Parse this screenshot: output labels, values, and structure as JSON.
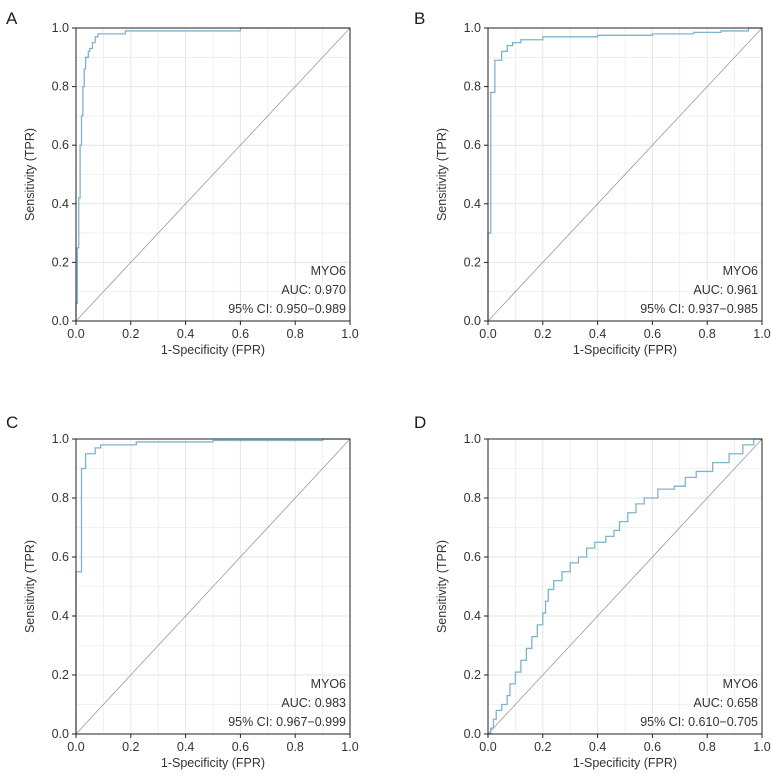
{
  "colors": {
    "roc": "#7fb4cc",
    "diagonal": "#9a9a9a",
    "grid": "#e6e6e6",
    "frame": "#222222",
    "text": "#333333"
  },
  "chart_data": [
    {
      "panel": "A",
      "type": "line",
      "xlabel": "1-Specificity (FPR)",
      "ylabel": "Sensitivity (TPR)",
      "xlim": [
        0,
        1
      ],
      "ylim": [
        0,
        1
      ],
      "grid": true,
      "xticks": [
        "0.0",
        "0.2",
        "0.4",
        "0.6",
        "0.8",
        "1.0"
      ],
      "yticks": [
        "0.0",
        "0.2",
        "0.4",
        "0.6",
        "0.8",
        "1.0"
      ],
      "annotation": {
        "name": "MYO6",
        "auc": "AUC: 0.970",
        "ci": "95% CI: 0.950−0.989"
      },
      "series": [
        {
          "name": "ROC",
          "points": [
            [
              0,
              0
            ],
            [
              0,
              0.06
            ],
            [
              0.005,
              0.06
            ],
            [
              0.005,
              0.25
            ],
            [
              0.01,
              0.25
            ],
            [
              0.01,
              0.42
            ],
            [
              0.015,
              0.42
            ],
            [
              0.015,
              0.6
            ],
            [
              0.02,
              0.6
            ],
            [
              0.02,
              0.7
            ],
            [
              0.025,
              0.7
            ],
            [
              0.025,
              0.8
            ],
            [
              0.03,
              0.8
            ],
            [
              0.03,
              0.86
            ],
            [
              0.035,
              0.86
            ],
            [
              0.035,
              0.9
            ],
            [
              0.045,
              0.9
            ],
            [
              0.045,
              0.92
            ],
            [
              0.05,
              0.92
            ],
            [
              0.05,
              0.93
            ],
            [
              0.06,
              0.93
            ],
            [
              0.06,
              0.95
            ],
            [
              0.07,
              0.95
            ],
            [
              0.07,
              0.97
            ],
            [
              0.08,
              0.97
            ],
            [
              0.08,
              0.98
            ],
            [
              0.18,
              0.98
            ],
            [
              0.18,
              0.99
            ],
            [
              0.6,
              0.99
            ],
            [
              0.6,
              1.0
            ],
            [
              1.0,
              1.0
            ]
          ]
        },
        {
          "name": "Reference",
          "points": [
            [
              0,
              0
            ],
            [
              1,
              1
            ]
          ]
        }
      ]
    },
    {
      "panel": "B",
      "type": "line",
      "xlabel": "1-Specificity (FPR)",
      "ylabel": "Sensitivity (TPR)",
      "xlim": [
        0,
        1
      ],
      "ylim": [
        0,
        1
      ],
      "grid": true,
      "xticks": [
        "0.0",
        "0.2",
        "0.4",
        "0.6",
        "0.8",
        "1.0"
      ],
      "yticks": [
        "0.0",
        "0.2",
        "0.4",
        "0.6",
        "0.8",
        "1.0"
      ],
      "annotation": {
        "name": "MYO6",
        "auc": "AUC: 0.961",
        "ci": "95% CI: 0.937−0.985"
      },
      "series": [
        {
          "name": "ROC",
          "points": [
            [
              0,
              0
            ],
            [
              0,
              0.3
            ],
            [
              0.01,
              0.3
            ],
            [
              0.01,
              0.78
            ],
            [
              0.025,
              0.78
            ],
            [
              0.025,
              0.89
            ],
            [
              0.05,
              0.89
            ],
            [
              0.05,
              0.92
            ],
            [
              0.07,
              0.92
            ],
            [
              0.07,
              0.94
            ],
            [
              0.09,
              0.94
            ],
            [
              0.09,
              0.95
            ],
            [
              0.12,
              0.95
            ],
            [
              0.12,
              0.96
            ],
            [
              0.2,
              0.96
            ],
            [
              0.2,
              0.97
            ],
            [
              0.4,
              0.97
            ],
            [
              0.4,
              0.975
            ],
            [
              0.6,
              0.975
            ],
            [
              0.6,
              0.98
            ],
            [
              0.75,
              0.98
            ],
            [
              0.75,
              0.985
            ],
            [
              0.85,
              0.985
            ],
            [
              0.85,
              0.99
            ],
            [
              0.95,
              0.99
            ],
            [
              0.95,
              1.0
            ],
            [
              1.0,
              1.0
            ]
          ]
        },
        {
          "name": "Reference",
          "points": [
            [
              0,
              0
            ],
            [
              1,
              1
            ]
          ]
        }
      ]
    },
    {
      "panel": "C",
      "type": "line",
      "xlabel": "1-Specificity (FPR)",
      "ylabel": "Sensitivity (TPR)",
      "xlim": [
        0,
        1
      ],
      "ylim": [
        0,
        1
      ],
      "grid": true,
      "xticks": [
        "0.0",
        "0.2",
        "0.4",
        "0.6",
        "0.8",
        "1.0"
      ],
      "yticks": [
        "0.0",
        "0.2",
        "0.4",
        "0.6",
        "0.8",
        "1.0"
      ],
      "annotation": {
        "name": "MYO6",
        "auc": "AUC: 0.983",
        "ci": "95% CI: 0.967−0.999"
      },
      "series": [
        {
          "name": "ROC",
          "points": [
            [
              0,
              0
            ],
            [
              0,
              0.55
            ],
            [
              0.02,
              0.55
            ],
            [
              0.02,
              0.9
            ],
            [
              0.035,
              0.9
            ],
            [
              0.035,
              0.95
            ],
            [
              0.07,
              0.95
            ],
            [
              0.07,
              0.97
            ],
            [
              0.09,
              0.97
            ],
            [
              0.09,
              0.98
            ],
            [
              0.22,
              0.98
            ],
            [
              0.22,
              0.99
            ],
            [
              0.5,
              0.99
            ],
            [
              0.5,
              0.995
            ],
            [
              0.9,
              0.995
            ],
            [
              0.9,
              1.0
            ],
            [
              1.0,
              1.0
            ]
          ]
        },
        {
          "name": "Reference",
          "points": [
            [
              0,
              0
            ],
            [
              1,
              1
            ]
          ]
        }
      ]
    },
    {
      "panel": "D",
      "type": "line",
      "xlabel": "1-Specificity (FPR)",
      "ylabel": "Sensitivity (TPR)",
      "xlim": [
        0,
        1
      ],
      "ylim": [
        0,
        1
      ],
      "grid": true,
      "xticks": [
        "0.0",
        "0.2",
        "0.4",
        "0.6",
        "0.8",
        "1.0"
      ],
      "yticks": [
        "0.0",
        "0.2",
        "0.4",
        "0.6",
        "0.8",
        "1.0"
      ],
      "annotation": {
        "name": "MYO6",
        "auc": "AUC: 0.658",
        "ci": "95% CI: 0.610−0.705"
      },
      "series": [
        {
          "name": "ROC",
          "points": [
            [
              0,
              0
            ],
            [
              0.01,
              0
            ],
            [
              0.01,
              0.02
            ],
            [
              0.02,
              0.02
            ],
            [
              0.02,
              0.05
            ],
            [
              0.03,
              0.05
            ],
            [
              0.03,
              0.08
            ],
            [
              0.05,
              0.08
            ],
            [
              0.05,
              0.1
            ],
            [
              0.07,
              0.1
            ],
            [
              0.07,
              0.13
            ],
            [
              0.08,
              0.13
            ],
            [
              0.08,
              0.17
            ],
            [
              0.1,
              0.17
            ],
            [
              0.1,
              0.21
            ],
            [
              0.12,
              0.21
            ],
            [
              0.12,
              0.25
            ],
            [
              0.14,
              0.25
            ],
            [
              0.14,
              0.29
            ],
            [
              0.16,
              0.29
            ],
            [
              0.16,
              0.33
            ],
            [
              0.18,
              0.33
            ],
            [
              0.18,
              0.37
            ],
            [
              0.2,
              0.37
            ],
            [
              0.2,
              0.41
            ],
            [
              0.21,
              0.41
            ],
            [
              0.21,
              0.45
            ],
            [
              0.22,
              0.45
            ],
            [
              0.22,
              0.49
            ],
            [
              0.24,
              0.49
            ],
            [
              0.24,
              0.52
            ],
            [
              0.27,
              0.52
            ],
            [
              0.27,
              0.55
            ],
            [
              0.3,
              0.55
            ],
            [
              0.3,
              0.58
            ],
            [
              0.33,
              0.58
            ],
            [
              0.33,
              0.6
            ],
            [
              0.36,
              0.6
            ],
            [
              0.36,
              0.63
            ],
            [
              0.39,
              0.63
            ],
            [
              0.39,
              0.65
            ],
            [
              0.43,
              0.65
            ],
            [
              0.43,
              0.67
            ],
            [
              0.46,
              0.67
            ],
            [
              0.46,
              0.69
            ],
            [
              0.48,
              0.69
            ],
            [
              0.48,
              0.72
            ],
            [
              0.51,
              0.72
            ],
            [
              0.51,
              0.75
            ],
            [
              0.54,
              0.75
            ],
            [
              0.54,
              0.78
            ],
            [
              0.57,
              0.78
            ],
            [
              0.57,
              0.8
            ],
            [
              0.62,
              0.8
            ],
            [
              0.62,
              0.83
            ],
            [
              0.68,
              0.83
            ],
            [
              0.68,
              0.84
            ],
            [
              0.72,
              0.84
            ],
            [
              0.72,
              0.87
            ],
            [
              0.76,
              0.87
            ],
            [
              0.76,
              0.89
            ],
            [
              0.82,
              0.89
            ],
            [
              0.82,
              0.92
            ],
            [
              0.88,
              0.92
            ],
            [
              0.88,
              0.95
            ],
            [
              0.93,
              0.95
            ],
            [
              0.93,
              0.98
            ],
            [
              0.97,
              0.98
            ],
            [
              0.97,
              1.0
            ],
            [
              1.0,
              1.0
            ]
          ]
        },
        {
          "name": "Reference",
          "points": [
            [
              0,
              0
            ],
            [
              1,
              1
            ]
          ]
        }
      ]
    }
  ]
}
